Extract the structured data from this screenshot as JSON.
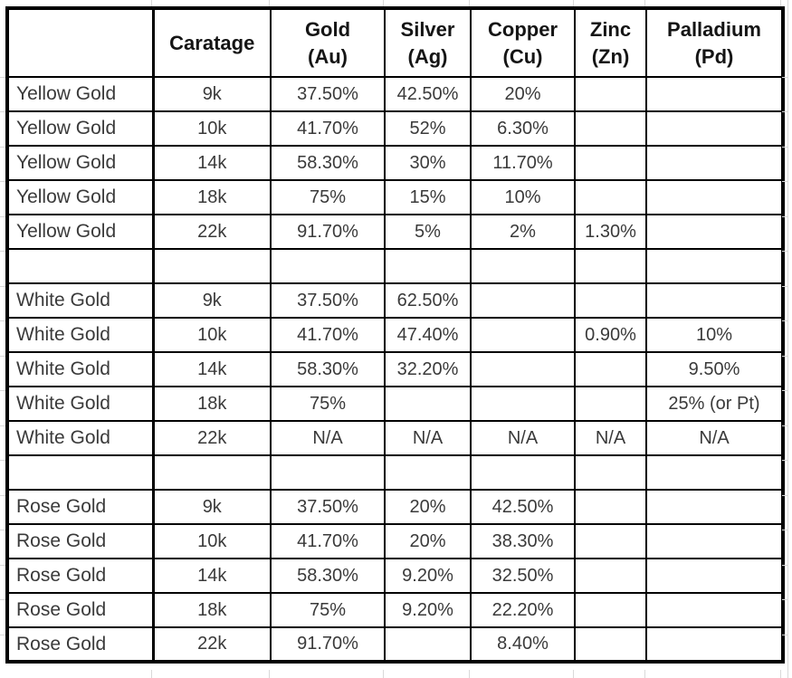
{
  "colors": {
    "table_border": "#000000",
    "header_text": "#151515",
    "data_text": "#3a3a3a",
    "outside_gridline": "#d9d9d9",
    "background": "#ffffff"
  },
  "table": {
    "columns": [
      {
        "label": "",
        "sublabel": ""
      },
      {
        "label": "Caratage",
        "sublabel": ""
      },
      {
        "label": "Gold",
        "sublabel": "(Au)"
      },
      {
        "label": "Silver",
        "sublabel": "(Ag)"
      },
      {
        "label": "Copper",
        "sublabel": "(Cu)"
      },
      {
        "label": "Zinc",
        "sublabel": "(Zn)"
      },
      {
        "label": "Palladium",
        "sublabel": "(Pd)"
      }
    ],
    "rows": [
      {
        "metal": "Yellow Gold",
        "caratage": "9k",
        "gold": "37.50%",
        "silver": "42.50%",
        "copper": "20%",
        "zinc": "",
        "palladium": ""
      },
      {
        "metal": "Yellow Gold",
        "caratage": "10k",
        "gold": "41.70%",
        "silver": "52%",
        "copper": "6.30%",
        "zinc": "",
        "palladium": ""
      },
      {
        "metal": "Yellow Gold",
        "caratage": "14k",
        "gold": "58.30%",
        "silver": "30%",
        "copper": "11.70%",
        "zinc": "",
        "palladium": ""
      },
      {
        "metal": "Yellow Gold",
        "caratage": "18k",
        "gold": "75%",
        "silver": "15%",
        "copper": "10%",
        "zinc": "",
        "palladium": ""
      },
      {
        "metal": "Yellow Gold",
        "caratage": "22k",
        "gold": "91.70%",
        "silver": "5%",
        "copper": "2%",
        "zinc": "1.30%",
        "palladium": ""
      },
      {
        "metal": "",
        "caratage": "",
        "gold": "",
        "silver": "",
        "copper": "",
        "zinc": "",
        "palladium": ""
      },
      {
        "metal": "White Gold",
        "caratage": "9k",
        "gold": "37.50%",
        "silver": "62.50%",
        "copper": "",
        "zinc": "",
        "palladium": ""
      },
      {
        "metal": "White Gold",
        "caratage": "10k",
        "gold": "41.70%",
        "silver": "47.40%",
        "copper": "",
        "zinc": "0.90%",
        "palladium": "10%"
      },
      {
        "metal": "White Gold",
        "caratage": "14k",
        "gold": "58.30%",
        "silver": "32.20%",
        "copper": "",
        "zinc": "",
        "palladium": "9.50%"
      },
      {
        "metal": "White Gold",
        "caratage": "18k",
        "gold": "75%",
        "silver": "",
        "copper": "",
        "zinc": "",
        "palladium": "25% (or Pt)"
      },
      {
        "metal": "White Gold",
        "caratage": "22k",
        "gold": "N/A",
        "silver": "N/A",
        "copper": "N/A",
        "zinc": "N/A",
        "palladium": "N/A"
      },
      {
        "metal": "",
        "caratage": "",
        "gold": "",
        "silver": "",
        "copper": "",
        "zinc": "",
        "palladium": ""
      },
      {
        "metal": "Rose Gold",
        "caratage": "9k",
        "gold": "37.50%",
        "silver": "20%",
        "copper": "42.50%",
        "zinc": "",
        "palladium": ""
      },
      {
        "metal": "Rose Gold",
        "caratage": "10k",
        "gold": "41.70%",
        "silver": "20%",
        "copper": "38.30%",
        "zinc": "",
        "palladium": ""
      },
      {
        "metal": "Rose Gold",
        "caratage": "14k",
        "gold": "58.30%",
        "silver": "9.20%",
        "copper": "32.50%",
        "zinc": "",
        "palladium": ""
      },
      {
        "metal": "Rose Gold",
        "caratage": "18k",
        "gold": "75%",
        "silver": "9.20%",
        "copper": "22.20%",
        "zinc": "",
        "palladium": ""
      },
      {
        "metal": "Rose Gold",
        "caratage": "22k",
        "gold": "91.70%",
        "silver": "",
        "copper": "8.40%",
        "zinc": "",
        "palladium": ""
      }
    ]
  }
}
